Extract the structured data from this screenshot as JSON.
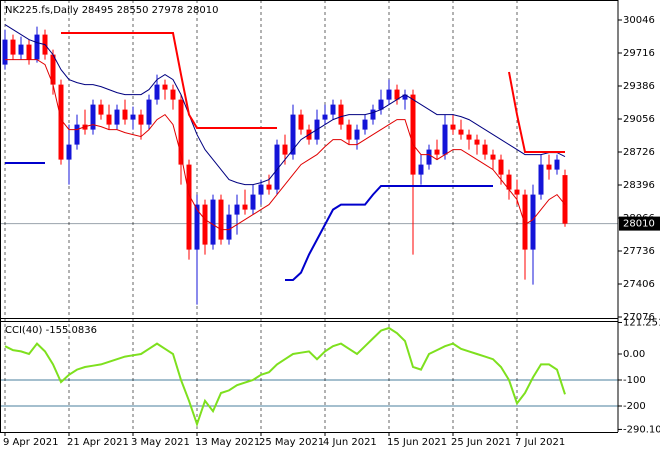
{
  "chart_data": [
    {
      "type": "candlestick",
      "title": "NK225.fs,Daily  28495 28550 27978 28010",
      "opens": [
        29600,
        29850,
        29700,
        29800,
        29650,
        29900,
        29700,
        29400,
        28650,
        28800,
        29000,
        28950,
        29200,
        29100,
        29000,
        29150,
        29050,
        29100,
        29000,
        29250,
        29400,
        29350,
        29250,
        28600,
        27750,
        28200,
        27800,
        28250,
        27850,
        28100,
        28200,
        28150,
        28300,
        28400,
        28350,
        28800,
        28700,
        29100,
        28950,
        28850,
        29050,
        29100,
        29200,
        29000,
        28850,
        28950,
        29050,
        29150,
        29250,
        29350,
        29250,
        29300,
        28500,
        28600,
        28750,
        28700,
        29000,
        28950,
        28900,
        28850,
        28800,
        28700,
        28650,
        28500,
        28350,
        28300,
        27750,
        28300,
        28600,
        28550,
        28495
      ],
      "highs": [
        29950,
        29900,
        29880,
        29850,
        29980,
        29950,
        29750,
        29450,
        29000,
        29100,
        29150,
        29250,
        29250,
        29200,
        29200,
        29250,
        29180,
        29150,
        29300,
        29500,
        29450,
        29400,
        29300,
        28650,
        28300,
        28250,
        28300,
        28300,
        28200,
        28300,
        28350,
        28400,
        28450,
        28500,
        28850,
        28900,
        29200,
        29150,
        29000,
        29150,
        29200,
        29250,
        29250,
        29050,
        29000,
        29100,
        29200,
        29350,
        29450,
        29400,
        29350,
        29350,
        28700,
        28800,
        28850,
        29100,
        29100,
        29050,
        28950,
        28900,
        28850,
        28750,
        28700,
        28550,
        28450,
        28350,
        28400,
        28700,
        28700,
        28700,
        28550
      ],
      "lows": [
        29550,
        29650,
        29650,
        29600,
        29620,
        29650,
        29300,
        28600,
        28400,
        28750,
        28900,
        28900,
        29050,
        28950,
        28950,
        29000,
        28950,
        28850,
        28950,
        29200,
        29250,
        29150,
        28400,
        27650,
        27200,
        27700,
        27750,
        27800,
        27800,
        27900,
        28100,
        28100,
        28200,
        28300,
        28300,
        28600,
        28650,
        28900,
        28800,
        28800,
        29000,
        29050,
        28950,
        28800,
        28750,
        28900,
        29000,
        29100,
        29200,
        29200,
        29150,
        27700,
        28400,
        28550,
        28650,
        28650,
        28900,
        28850,
        28750,
        28700,
        28650,
        28550,
        28400,
        28250,
        28200,
        27450,
        27400,
        28250,
        28450,
        28500,
        27978
      ],
      "closes": [
        29850,
        29700,
        29800,
        29650,
        29900,
        29700,
        29400,
        28650,
        28800,
        29000,
        28950,
        29200,
        29100,
        29000,
        29150,
        29050,
        29100,
        29000,
        29250,
        29400,
        29350,
        29250,
        28600,
        27750,
        28200,
        27800,
        28250,
        27850,
        28100,
        28200,
        28150,
        28300,
        28400,
        28350,
        28800,
        28700,
        29100,
        28950,
        28850,
        29050,
        29100,
        29200,
        29000,
        28850,
        28950,
        29050,
        29150,
        29250,
        29350,
        29250,
        29300,
        28500,
        28600,
        28750,
        28700,
        29000,
        28950,
        28900,
        28850,
        28800,
        28700,
        28650,
        28500,
        28350,
        28300,
        27750,
        28300,
        28600,
        28550,
        28650,
        28010
      ],
      "up_color": "#1414d8",
      "down_color": "#ff0000",
      "lines": [
        {
          "color": "#000080",
          "width": 1,
          "values": [
            30000,
            29950,
            29900,
            29850,
            29820,
            29800,
            29700,
            29550,
            29450,
            29420,
            29400,
            29400,
            29380,
            29350,
            29320,
            29300,
            29300,
            29300,
            29350,
            29450,
            29500,
            29450,
            29300,
            29100,
            28900,
            28750,
            28650,
            28550,
            28450,
            28420,
            28400,
            28400,
            28420,
            28450,
            28550,
            28650,
            28750,
            28850,
            28900,
            28950,
            29000,
            29050,
            29080,
            29100,
            29100,
            29100,
            29120,
            29150,
            29200,
            29250,
            29300,
            29250,
            29200,
            29150,
            29100,
            29100,
            29100,
            29080,
            29050,
            29000,
            28950,
            28900,
            28850,
            28800,
            28750,
            28700,
            28700,
            28700,
            28720,
            28720,
            28680
          ]
        },
        {
          "color": "#e00000",
          "width": 1,
          "values": [
            29650,
            29650,
            29650,
            29650,
            29650,
            29600,
            29400,
            29050,
            28950,
            28950,
            28980,
            29000,
            28980,
            28950,
            28950,
            28920,
            28900,
            28880,
            28950,
            29050,
            29100,
            29000,
            28700,
            28300,
            28150,
            28050,
            28000,
            27950,
            27950,
            28000,
            28050,
            28100,
            28150,
            28200,
            28300,
            28400,
            28500,
            28600,
            28650,
            28700,
            28780,
            28850,
            28850,
            28800,
            28800,
            28850,
            28900,
            28950,
            29000,
            29050,
            29050,
            28800,
            28700,
            28700,
            28650,
            28700,
            28750,
            28750,
            28700,
            28650,
            28600,
            28550,
            28450,
            28350,
            28250,
            28000,
            28050,
            28150,
            28250,
            28300,
            28200
          ]
        },
        {
          "color": "#ff0000",
          "width": 2,
          "values": [
            null,
            null,
            null,
            null,
            null,
            null,
            null,
            29916,
            29916,
            29916,
            29916,
            29916,
            29916,
            29916,
            29916,
            29916,
            29916,
            29916,
            29916,
            29916,
            29916,
            29916,
            29500,
            29100,
            28966,
            28966,
            28966,
            28966,
            28966,
            28966,
            28966,
            28966,
            28966,
            28966,
            28966,
            null,
            null,
            null,
            null,
            null,
            null,
            null,
            null,
            null,
            null,
            null,
            null,
            null,
            null,
            null,
            null,
            null,
            null,
            null,
            null,
            null,
            null,
            null,
            null,
            null,
            null,
            null,
            null,
            29526,
            29100,
            28726,
            28726,
            28726,
            28726,
            28726,
            28726
          ]
        },
        {
          "color": "#0000cc",
          "width": 2,
          "values": [
            28616,
            28616,
            28616,
            28616,
            28616,
            28616,
            null,
            null,
            null,
            null,
            null,
            null,
            null,
            null,
            null,
            null,
            null,
            null,
            null,
            null,
            null,
            null,
            null,
            null,
            null,
            null,
            null,
            null,
            null,
            null,
            null,
            null,
            null,
            null,
            null,
            27446,
            27446,
            27520,
            27700,
            27850,
            28000,
            28150,
            28200,
            28200,
            28200,
            28200,
            28300,
            28386,
            28386,
            28386,
            28386,
            28386,
            28386,
            28386,
            28386,
            28386,
            28386,
            28386,
            28386,
            28386,
            28386,
            28386,
            null,
            null,
            null,
            null,
            null,
            null,
            null,
            null,
            null
          ]
        }
      ],
      "last_price": 28010,
      "ylim": [
        27066,
        30246
      ],
      "yticks": [
        30046,
        29716,
        29386,
        29056,
        28726,
        28396,
        28066,
        27736,
        27406,
        27076
      ]
    },
    {
      "type": "line",
      "title": "CCI(40) -155.0836",
      "color": "#7ee01e",
      "values": [
        30,
        15,
        10,
        0,
        40,
        10,
        -40,
        -108,
        -80,
        -60,
        -50,
        -45,
        -40,
        -30,
        -20,
        -10,
        -5,
        0,
        20,
        40,
        20,
        0,
        -100,
        -180,
        -270,
        -180,
        -220,
        -150,
        -140,
        -120,
        -110,
        -100,
        -80,
        -70,
        -40,
        -20,
        0,
        5,
        10,
        -20,
        10,
        30,
        40,
        20,
        0,
        30,
        60,
        90,
        100,
        80,
        50,
        -50,
        -60,
        0,
        15,
        30,
        40,
        20,
        10,
        0,
        -10,
        -20,
        -50,
        -100,
        -190,
        -150,
        -90,
        -40,
        -40,
        -60,
        -155
      ],
      "ylim": [
        -300,
        123
      ],
      "yticks": [
        121.2519,
        {
          "value": 0,
          "label": "0.00"
        },
        -100,
        -200,
        -290.103
      ],
      "levels": [
        -100,
        -200
      ],
      "xticks": [
        {
          "value": 0,
          "label": "9 Apr 2021"
        },
        {
          "value": 8,
          "label": "21 Apr 2021"
        },
        {
          "value": 16,
          "label": "3 May 2021"
        },
        {
          "value": 24,
          "label": "13 May 2021"
        },
        {
          "value": 32,
          "label": "25 May 2021"
        },
        {
          "value": 40,
          "label": "4 Jun 2021"
        },
        {
          "value": 48,
          "label": "15 Jun 2021"
        },
        {
          "value": 56,
          "label": "25 Jun 2021"
        },
        {
          "value": 64,
          "label": "7 Jul 2021"
        }
      ]
    }
  ]
}
